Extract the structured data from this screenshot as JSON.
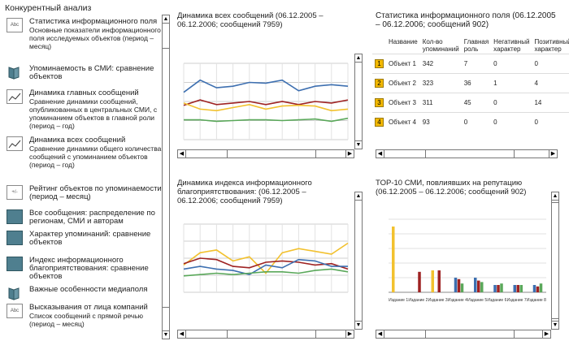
{
  "app": {
    "title": "Конкурентный анализ"
  },
  "colors": {
    "blue": "#3d6fb0",
    "red": "#9e2222",
    "yellow": "#f2c12e",
    "green": "#5aa85a",
    "teal": "#4f7f8f"
  },
  "nav": [
    {
      "icon": "abc-icon",
      "icon_text": "Abc",
      "title": "Статистика информационного поля",
      "desc": "Основные показатели информационного поля исследуемых объектов (период – месяц)"
    },
    {
      "icon": "book-icon",
      "title": "Упоминаемость в СМИ: сравнение объектов",
      "desc": ""
    },
    {
      "icon": "line-chart-icon",
      "title": "Динамика главных сообщений",
      "desc": "Сравнение динамики сообщений, опубликованных в центральных СМИ, с упоминанием объектов в главной роли (период – год)"
    },
    {
      "icon": "line-chart-icon",
      "title": "Динамика всех сообщений",
      "desc": "Сравнение динамики общего количества сообщений с упоминанием объектов (период – год)"
    },
    {
      "icon": "plus-minus-icon",
      "icon_text": "+/-",
      "title": "Рейтинг объектов по упоминаемости (период – месяц)",
      "desc": ""
    },
    {
      "icon": "teal-square-icon",
      "title": "Все сообщения: распределение по регионам, СМИ и авторам",
      "desc": ""
    },
    {
      "icon": "teal-square-icon",
      "title": "Характер упоминаний: сравнение объектов",
      "desc": ""
    },
    {
      "icon": "teal-square-icon",
      "title": "Индекс информационного благоприятствования: сравнение объектов",
      "desc": ""
    },
    {
      "icon": "book-icon",
      "title": "Важные особенности медиаполя",
      "desc": ""
    },
    {
      "icon": "abc-icon",
      "icon_text": "Abc",
      "title": "Высказывания от лица компаний",
      "desc": "Список сообщений с прямой речью (период – месяц)"
    }
  ],
  "panels": {
    "dynamics_all": {
      "title": "Динамика всех сообщений (06.12.2005 – 06.12.2006; сообщений 7959)"
    },
    "stats": {
      "title": "Статистика информационного поля (06.12.2005 – 06.12.2006; сообщений 902)",
      "headers": [
        "Название",
        "Кол-во упоминаний",
        "Главная роль",
        "Негативный характер",
        "Позитивный характер"
      ],
      "rows": [
        {
          "rank": "1",
          "name": "Объект 1",
          "mentions": "342",
          "main": "7",
          "neg": "0",
          "pos": "0"
        },
        {
          "rank": "2",
          "name": "Объект 2",
          "mentions": "323",
          "main": "36",
          "neg": "1",
          "pos": "4"
        },
        {
          "rank": "3",
          "name": "Объект 3",
          "mentions": "311",
          "main": "45",
          "neg": "0",
          "pos": "14"
        },
        {
          "rank": "4",
          "name": "Объект 4",
          "mentions": "93",
          "main": "0",
          "neg": "0",
          "pos": "0"
        }
      ]
    },
    "index": {
      "title": "Динамика индекса информационного благоприятствования: (06.12.2005 – 06.12.2006; сообщений 7959)"
    },
    "top10": {
      "title": "TOP-10 СМИ, повлиявших на репутацию (06.12.2005 – 06.12.2006; сообщений 902)",
      "labels": [
        "Издание 1",
        "Издание 2",
        "Издание 3",
        "Издание 4",
        "Издание 5",
        "Издание 6",
        "Издание 7",
        "Издание 8"
      ]
    }
  },
  "chart_data": [
    {
      "type": "line",
      "title": "Динамика всех сообщений",
      "x": [
        1,
        2,
        3,
        4,
        5,
        6,
        7,
        8,
        9,
        10,
        11
      ],
      "series": [
        {
          "color": "#3d6fb0",
          "values": [
            62,
            78,
            68,
            70,
            75,
            74,
            78,
            64,
            70,
            72,
            70
          ]
        },
        {
          "color": "#9e2222",
          "values": [
            45,
            52,
            46,
            48,
            50,
            46,
            50,
            46,
            50,
            48,
            52
          ]
        },
        {
          "color": "#f2c12e",
          "values": [
            48,
            40,
            38,
            42,
            46,
            40,
            44,
            45,
            44,
            38,
            40
          ]
        },
        {
          "color": "#5aa85a",
          "values": [
            26,
            26,
            24,
            25,
            26,
            26,
            25,
            26,
            27,
            24,
            28
          ]
        }
      ]
    },
    {
      "type": "line",
      "title": "Динамика индекса информационного благоприятствования",
      "x": [
        1,
        2,
        3,
        4,
        5,
        6,
        7,
        8,
        9,
        10,
        11
      ],
      "series": [
        {
          "color": "#f2c12e",
          "values": [
            40,
            58,
            62,
            46,
            52,
            28,
            58,
            64,
            60,
            56,
            72
          ]
        },
        {
          "color": "#9e2222",
          "values": [
            42,
            50,
            48,
            38,
            36,
            44,
            46,
            44,
            40,
            42,
            34
          ]
        },
        {
          "color": "#3d6fb0",
          "values": [
            34,
            38,
            34,
            32,
            26,
            40,
            36,
            48,
            46,
            38,
            38
          ]
        },
        {
          "color": "#5aa85a",
          "values": [
            24,
            26,
            28,
            26,
            28,
            30,
            30,
            28,
            32,
            34,
            30
          ]
        }
      ]
    },
    {
      "type": "bar",
      "title": "TOP-10 СМИ, повлиявших на репутацию",
      "categories": [
        "Издание 1",
        "Издание 2",
        "Издание 3",
        "Издание 4",
        "Издание 5",
        "Издание 6",
        "Издание 7",
        "Издание 8"
      ],
      "series": [
        {
          "color": "#f2c12e",
          "values": [
            90,
            0,
            30,
            0,
            0,
            0,
            0,
            0
          ]
        },
        {
          "color": "#3d6fb0",
          "values": [
            0,
            0,
            0,
            20,
            20,
            10,
            10,
            10
          ]
        },
        {
          "color": "#9e2222",
          "values": [
            0,
            28,
            30,
            18,
            16,
            10,
            10,
            8
          ]
        },
        {
          "color": "#5aa85a",
          "values": [
            0,
            0,
            0,
            12,
            14,
            12,
            10,
            12
          ]
        }
      ]
    }
  ]
}
